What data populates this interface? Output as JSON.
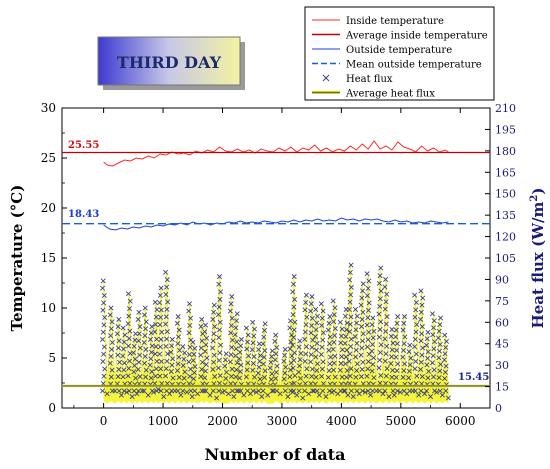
{
  "colors": {
    "inside": "#ff2a2a",
    "avg_inside": "#c00000",
    "outside": "#1f3fd8",
    "mean_outside": "#1060e0",
    "flux": "#3a3f8f",
    "avg_flux": "#d8d800",
    "flux_band": "#f2f21a",
    "left_axis_label": "#000000",
    "right_axis_label": "#1a1a7a",
    "badge_text": "#1a2a6a"
  },
  "chart_data": {
    "type": "line",
    "badge": "THIRD DAY",
    "xlabel": "Number of data",
    "ylabel_left": "Temperature (°C)",
    "ylabel_right_main": "Heat flux (W/m",
    "ylabel_right_sup": "2",
    "ylabel_right_close": ")",
    "xlim": [
      -700,
      6500
    ],
    "ylim_left": [
      0,
      30
    ],
    "ylim_right": [
      0,
      210
    ],
    "x_ticks": [
      "0",
      "1000",
      "2000",
      "3000",
      "4000",
      "5000",
      "6000"
    ],
    "y_left_ticks": [
      "0",
      "5",
      "10",
      "15",
      "20",
      "25",
      "30"
    ],
    "y_right_ticks": [
      "0",
      "15",
      "30",
      "45",
      "60",
      "75",
      "90",
      "105",
      "120",
      "135",
      "150",
      "165",
      "180",
      "195",
      "210"
    ],
    "legend_position": "top-right",
    "legend": [
      {
        "label": "Inside temperature",
        "style": "line",
        "color_key": "inside"
      },
      {
        "label": "Average inside temperature",
        "style": "line-thick",
        "color_key": "avg_inside"
      },
      {
        "label": "Outside temperature",
        "style": "line",
        "color_key": "outside"
      },
      {
        "label": "Mean outside temperature",
        "style": "dash",
        "color_key": "mean_outside"
      },
      {
        "label": "Heat flux",
        "style": "cross",
        "color_key": "flux"
      },
      {
        "label": "Average heat flux",
        "style": "line-thick-flux",
        "color_key": "avg_flux"
      }
    ],
    "annotations": {
      "avg_inside": "25.55",
      "mean_outside": "18.43",
      "avg_flux": "15.45"
    },
    "reference_lines": {
      "avg_inside_temp": 25.55,
      "mean_outside_temp": 18.43,
      "avg_heat_flux": 15.45
    },
    "series": {
      "inside_temperature": {
        "x": [
          0,
          60,
          150,
          250,
          350,
          450,
          550,
          650,
          750,
          850,
          950,
          1050,
          1150,
          1250,
          1350,
          1450,
          1550,
          1650,
          1750,
          1850,
          1950,
          2050,
          2150,
          2250,
          2350,
          2450,
          2550,
          2650,
          2750,
          2850,
          2950,
          3050,
          3150,
          3250,
          3350,
          3450,
          3550,
          3650,
          3750,
          3850,
          3950,
          4050,
          4150,
          4250,
          4350,
          4450,
          4550,
          4650,
          4750,
          4850,
          4950,
          5050,
          5150,
          5250,
          5350,
          5450,
          5550,
          5650,
          5750,
          5800
        ],
        "y": [
          24.6,
          24.3,
          24.2,
          24.5,
          24.8,
          24.7,
          25.0,
          24.9,
          25.2,
          25.0,
          25.4,
          25.3,
          25.6,
          25.4,
          25.5,
          25.3,
          25.7,
          25.5,
          25.8,
          25.6,
          26.1,
          25.7,
          25.6,
          25.9,
          25.6,
          25.8,
          25.5,
          25.9,
          25.7,
          25.6,
          26.0,
          25.7,
          26.1,
          25.6,
          26.0,
          25.8,
          26.3,
          25.7,
          26.0,
          25.6,
          25.9,
          25.7,
          26.2,
          25.8,
          26.4,
          25.9,
          26.7,
          25.9,
          26.2,
          25.8,
          26.6,
          26.1,
          25.9,
          25.6,
          26.2,
          25.7,
          26.0,
          25.6,
          25.8,
          25.6
        ]
      },
      "outside_temperature": {
        "x": [
          0,
          100,
          200,
          300,
          400,
          500,
          600,
          700,
          800,
          900,
          1000,
          1100,
          1200,
          1300,
          1400,
          1500,
          1600,
          1700,
          1800,
          1900,
          2000,
          2100,
          2200,
          2300,
          2400,
          2500,
          2600,
          2700,
          2800,
          2900,
          3000,
          3100,
          3200,
          3300,
          3400,
          3500,
          3600,
          3700,
          3800,
          3900,
          4000,
          4100,
          4200,
          4300,
          4400,
          4500,
          4600,
          4700,
          4800,
          4900,
          5000,
          5100,
          5200,
          5300,
          5400,
          5500,
          5600,
          5700,
          5800
        ],
        "y": [
          18.3,
          17.9,
          17.8,
          18.0,
          17.9,
          18.1,
          18.0,
          18.2,
          18.1,
          18.3,
          18.2,
          18.4,
          18.3,
          18.5,
          18.3,
          18.6,
          18.4,
          18.5,
          18.3,
          18.5,
          18.4,
          18.6,
          18.5,
          18.7,
          18.5,
          18.6,
          18.5,
          18.7,
          18.6,
          18.5,
          18.7,
          18.6,
          18.8,
          18.6,
          18.8,
          18.7,
          18.9,
          18.7,
          18.8,
          18.7,
          19.0,
          18.8,
          18.9,
          18.7,
          18.9,
          18.8,
          18.9,
          18.7,
          18.6,
          18.8,
          18.6,
          18.7,
          18.5,
          18.6,
          18.5,
          18.7,
          18.6,
          18.5,
          18.6
        ]
      },
      "heat_flux_peaks": {
        "x": [
          0,
          130,
          250,
          340,
          430,
          520,
          600,
          700,
          800,
          880,
          960,
          1060,
          1150,
          1260,
          1350,
          1450,
          1520,
          1650,
          1720,
          1850,
          1950,
          2050,
          2150,
          2230,
          2300,
          2420,
          2520,
          2620,
          2700,
          2820,
          2900,
          3050,
          3150,
          3200,
          3300,
          3400,
          3500,
          3580,
          3680,
          3800,
          3880,
          4000,
          4080,
          4150,
          4250,
          4350,
          4450,
          4530,
          4650,
          4750,
          4850,
          4930,
          5050,
          5150,
          5250,
          5350,
          5450,
          5550,
          5650,
          5750
        ],
        "y": [
          89,
          70,
          62,
          56,
          80,
          52,
          67,
          70,
          57,
          74,
          84,
          95,
          48,
          64,
          43,
          73,
          46,
          62,
          58,
          72,
          92,
          38,
          78,
          66,
          48,
          56,
          60,
          45,
          59,
          40,
          51,
          41,
          61,
          92,
          47,
          79,
          78,
          69,
          73,
          64,
          75,
          60,
          69,
          100,
          69,
          87,
          94,
          63,
          98,
          90,
          55,
          64,
          64,
          44,
          79,
          82,
          53,
          66,
          63,
          51
        ]
      },
      "heat_flux_troughs": {
        "x": [
          60,
          190,
          300,
          390,
          480,
          560,
          650,
          750,
          840,
          920,
          1010,
          1110,
          1200,
          1300,
          1400,
          1490,
          1580,
          1690,
          1790,
          1900,
          2000,
          2100,
          2190,
          2270,
          2360,
          2470,
          2570,
          2660,
          2760,
          2860,
          2970,
          3100,
          3180,
          3250,
          3350,
          3450,
          3540,
          3630,
          3740,
          3840,
          3940,
          4040,
          4110,
          4200,
          4300,
          4400,
          4490,
          4590,
          4700,
          4800,
          4890,
          4990,
          5100,
          5200,
          5300,
          5400,
          5500,
          5600,
          5700,
          5800
        ],
        "y": [
          10,
          12,
          9,
          11,
          8,
          10,
          12,
          9,
          11,
          13,
          8,
          10,
          12,
          9,
          11,
          8,
          10,
          12,
          9,
          7,
          11,
          10,
          8,
          12,
          9,
          10,
          11,
          8,
          9,
          12,
          10,
          8,
          11,
          9,
          7,
          10,
          12,
          9,
          8,
          11,
          10,
          12,
          9,
          8,
          10,
          11,
          9,
          12,
          10,
          8,
          9,
          11,
          10,
          12,
          9,
          10,
          8,
          11,
          9,
          7
        ]
      }
    }
  }
}
